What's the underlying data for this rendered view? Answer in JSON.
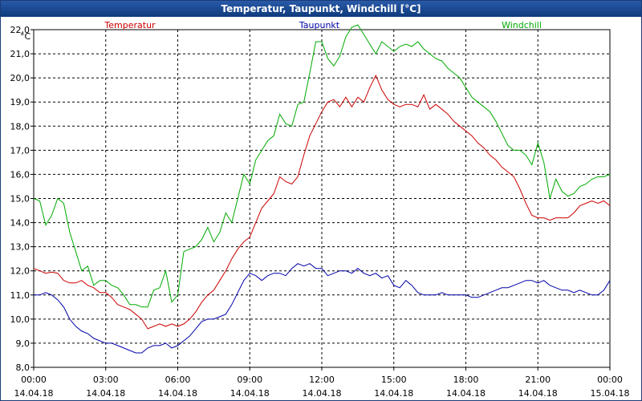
{
  "window": {
    "title": "Temperatur, Taupunkt, Windchill [°C]"
  },
  "chart_data": {
    "type": "line",
    "title": "Temperatur, Taupunkt, Windchill [°C]",
    "ylabel": "°C",
    "ylim": [
      8.0,
      22.0
    ],
    "yticks": [
      "8,0",
      "9,0",
      "10,0",
      "11,0",
      "12,0",
      "13,0",
      "14,0",
      "15,0",
      "16,0",
      "17,0",
      "18,0",
      "19,0",
      "20,0",
      "21,0",
      "22,0"
    ],
    "xlim_hours": [
      0,
      24
    ],
    "xticks": [
      {
        "time": "00:00",
        "date": "14.04.18"
      },
      {
        "time": "03:00",
        "date": "14.04.18"
      },
      {
        "time": "06:00",
        "date": "14.04.18"
      },
      {
        "time": "09:00",
        "date": "14.04.18"
      },
      {
        "time": "12:00",
        "date": "14.04.18"
      },
      {
        "time": "15:00",
        "date": "14.04.18"
      },
      {
        "time": "18:00",
        "date": "14.04.18"
      },
      {
        "time": "21:00",
        "date": "14.04.18"
      },
      {
        "time": "00:00",
        "date": "15.04.18"
      }
    ],
    "grid": true,
    "legend": "top",
    "series": [
      {
        "name": "Temperatur",
        "color": "#cc0000",
        "x": [
          0,
          0.25,
          0.5,
          0.75,
          1,
          1.25,
          1.5,
          1.75,
          2,
          2.25,
          2.5,
          2.75,
          3,
          3.25,
          3.5,
          3.75,
          4,
          4.25,
          4.5,
          4.75,
          5,
          5.25,
          5.5,
          5.75,
          6,
          6.25,
          6.5,
          6.75,
          7,
          7.25,
          7.5,
          7.75,
          8,
          8.25,
          8.5,
          8.75,
          9,
          9.25,
          9.5,
          9.75,
          10,
          10.25,
          10.5,
          10.75,
          11,
          11.25,
          11.5,
          11.75,
          12,
          12.25,
          12.5,
          12.75,
          13,
          13.25,
          13.5,
          13.75,
          14,
          14.25,
          14.5,
          14.75,
          15,
          15.25,
          15.5,
          15.75,
          16,
          16.25,
          16.5,
          16.75,
          17,
          17.25,
          17.5,
          17.75,
          18,
          18.25,
          18.5,
          18.75,
          19,
          19.25,
          19.5,
          19.75,
          20,
          20.25,
          20.5,
          20.75,
          21,
          21.25,
          21.5,
          21.75,
          22,
          22.25,
          22.5,
          22.75,
          23,
          23.25,
          23.5,
          23.75,
          24
        ],
        "values": [
          12.1,
          12.0,
          11.9,
          11.95,
          11.9,
          11.6,
          11.5,
          11.5,
          11.6,
          11.4,
          11.3,
          11.1,
          11.1,
          10.9,
          10.6,
          10.5,
          10.4,
          10.2,
          10.0,
          9.6,
          9.7,
          9.8,
          9.7,
          9.8,
          9.7,
          9.8,
          10.0,
          10.3,
          10.7,
          11.0,
          11.2,
          11.6,
          12.0,
          12.5,
          12.9,
          13.2,
          13.4,
          14.0,
          14.6,
          14.9,
          15.2,
          15.9,
          15.7,
          15.6,
          15.9,
          16.8,
          17.6,
          18.1,
          18.6,
          19.0,
          19.1,
          18.8,
          19.2,
          18.8,
          19.2,
          19.0,
          19.6,
          20.1,
          19.5,
          19.1,
          18.9,
          18.8,
          18.9,
          18.9,
          18.8,
          19.3,
          18.7,
          18.9,
          18.7,
          18.5,
          18.2,
          18.0,
          17.8,
          17.6,
          17.3,
          17.1,
          16.8,
          16.6,
          16.3,
          16.1,
          15.9,
          15.4,
          14.8,
          14.3,
          14.2,
          14.2,
          14.1,
          14.2,
          14.2,
          14.2,
          14.4,
          14.7,
          14.8,
          14.9,
          14.8,
          14.9,
          14.7
        ]
      },
      {
        "name": "Taupunkt",
        "color": "#0000aa",
        "x": [
          0,
          0.25,
          0.5,
          0.75,
          1,
          1.25,
          1.5,
          1.75,
          2,
          2.25,
          2.5,
          2.75,
          3,
          3.25,
          3.5,
          3.75,
          4,
          4.25,
          4.5,
          4.75,
          5,
          5.25,
          5.5,
          5.75,
          6,
          6.25,
          6.5,
          6.75,
          7,
          7.25,
          7.5,
          7.75,
          8,
          8.25,
          8.5,
          8.75,
          9,
          9.25,
          9.5,
          9.75,
          10,
          10.25,
          10.5,
          10.75,
          11,
          11.25,
          11.5,
          11.75,
          12,
          12.25,
          12.5,
          12.75,
          13,
          13.25,
          13.5,
          13.75,
          14,
          14.25,
          14.5,
          14.75,
          15,
          15.25,
          15.5,
          15.75,
          16,
          16.25,
          16.5,
          16.75,
          17,
          17.25,
          17.5,
          17.75,
          18,
          18.25,
          18.5,
          18.75,
          19,
          19.25,
          19.5,
          19.75,
          20,
          20.25,
          20.5,
          20.75,
          21,
          21.25,
          21.5,
          21.75,
          22,
          22.25,
          22.5,
          22.75,
          23,
          23.25,
          23.5,
          23.75,
          24
        ],
        "values": [
          11.0,
          11.0,
          11.1,
          11.0,
          10.8,
          10.5,
          10.0,
          9.7,
          9.5,
          9.4,
          9.2,
          9.1,
          9.0,
          9.0,
          8.9,
          8.8,
          8.7,
          8.6,
          8.6,
          8.8,
          8.9,
          8.9,
          9.0,
          8.8,
          8.9,
          9.1,
          9.3,
          9.6,
          9.9,
          10.0,
          10.0,
          10.1,
          10.2,
          10.6,
          11.1,
          11.6,
          11.9,
          11.8,
          11.6,
          11.8,
          11.9,
          11.9,
          11.8,
          12.1,
          12.3,
          12.2,
          12.3,
          12.1,
          12.1,
          11.8,
          11.9,
          12.0,
          12.0,
          11.9,
          12.1,
          11.9,
          11.8,
          11.9,
          11.7,
          11.8,
          11.4,
          11.3,
          11.6,
          11.4,
          11.1,
          11.0,
          11.0,
          11.0,
          11.1,
          11.0,
          11.0,
          11.0,
          11.0,
          10.9,
          10.9,
          11.0,
          11.1,
          11.2,
          11.3,
          11.3,
          11.4,
          11.5,
          11.6,
          11.6,
          11.5,
          11.6,
          11.4,
          11.3,
          11.2,
          11.2,
          11.1,
          11.2,
          11.1,
          11.0,
          11.0,
          11.2,
          11.6
        ]
      },
      {
        "name": "Windchill",
        "color": "#00aa00",
        "x": [
          0,
          0.25,
          0.5,
          0.75,
          1,
          1.25,
          1.5,
          1.75,
          2,
          2.25,
          2.5,
          2.75,
          3,
          3.25,
          3.5,
          3.75,
          4,
          4.25,
          4.5,
          4.75,
          5,
          5.25,
          5.5,
          5.75,
          6,
          6.25,
          6.5,
          6.75,
          7,
          7.25,
          7.5,
          7.75,
          8,
          8.25,
          8.5,
          8.75,
          9,
          9.25,
          9.5,
          9.75,
          10,
          10.25,
          10.5,
          10.75,
          11,
          11.25,
          11.5,
          11.75,
          12,
          12.25,
          12.5,
          12.75,
          13,
          13.25,
          13.5,
          13.75,
          14,
          14.25,
          14.5,
          14.75,
          15,
          15.25,
          15.5,
          15.75,
          16,
          16.25,
          16.5,
          16.75,
          17,
          17.25,
          17.5,
          17.75,
          18,
          18.25,
          18.5,
          18.75,
          19,
          19.25,
          19.5,
          19.75,
          20,
          20.25,
          20.5,
          20.75,
          21,
          21.25,
          21.5,
          21.75,
          22,
          22.25,
          22.5,
          22.75,
          23,
          23.25,
          23.5,
          23.75,
          24
        ],
        "values": [
          15.0,
          14.9,
          13.9,
          14.3,
          15.0,
          14.8,
          13.6,
          12.8,
          12.0,
          12.2,
          11.4,
          11.6,
          11.6,
          11.4,
          11.3,
          11.0,
          10.6,
          10.6,
          10.5,
          10.5,
          11.2,
          11.3,
          12.0,
          10.7,
          11.0,
          12.8,
          12.9,
          13.0,
          13.3,
          13.8,
          13.2,
          13.6,
          14.4,
          14.0,
          15.0,
          16.0,
          15.6,
          16.6,
          17.0,
          17.4,
          17.6,
          18.5,
          18.1,
          18.0,
          18.9,
          19.0,
          20.2,
          21.5,
          21.5,
          20.8,
          20.5,
          20.9,
          21.7,
          22.1,
          22.2,
          21.8,
          21.4,
          21.0,
          21.5,
          21.3,
          21.1,
          21.3,
          21.4,
          21.3,
          21.5,
          21.2,
          21.0,
          20.8,
          20.7,
          20.4,
          20.2,
          20.0,
          19.6,
          19.2,
          19.0,
          18.8,
          18.6,
          18.2,
          17.7,
          17.2,
          17.0,
          17.0,
          16.8,
          16.4,
          17.3,
          16.5,
          15.0,
          15.8,
          15.3,
          15.1,
          15.2,
          15.5,
          15.6,
          15.8,
          15.9,
          15.9,
          16.0
        ]
      }
    ]
  }
}
